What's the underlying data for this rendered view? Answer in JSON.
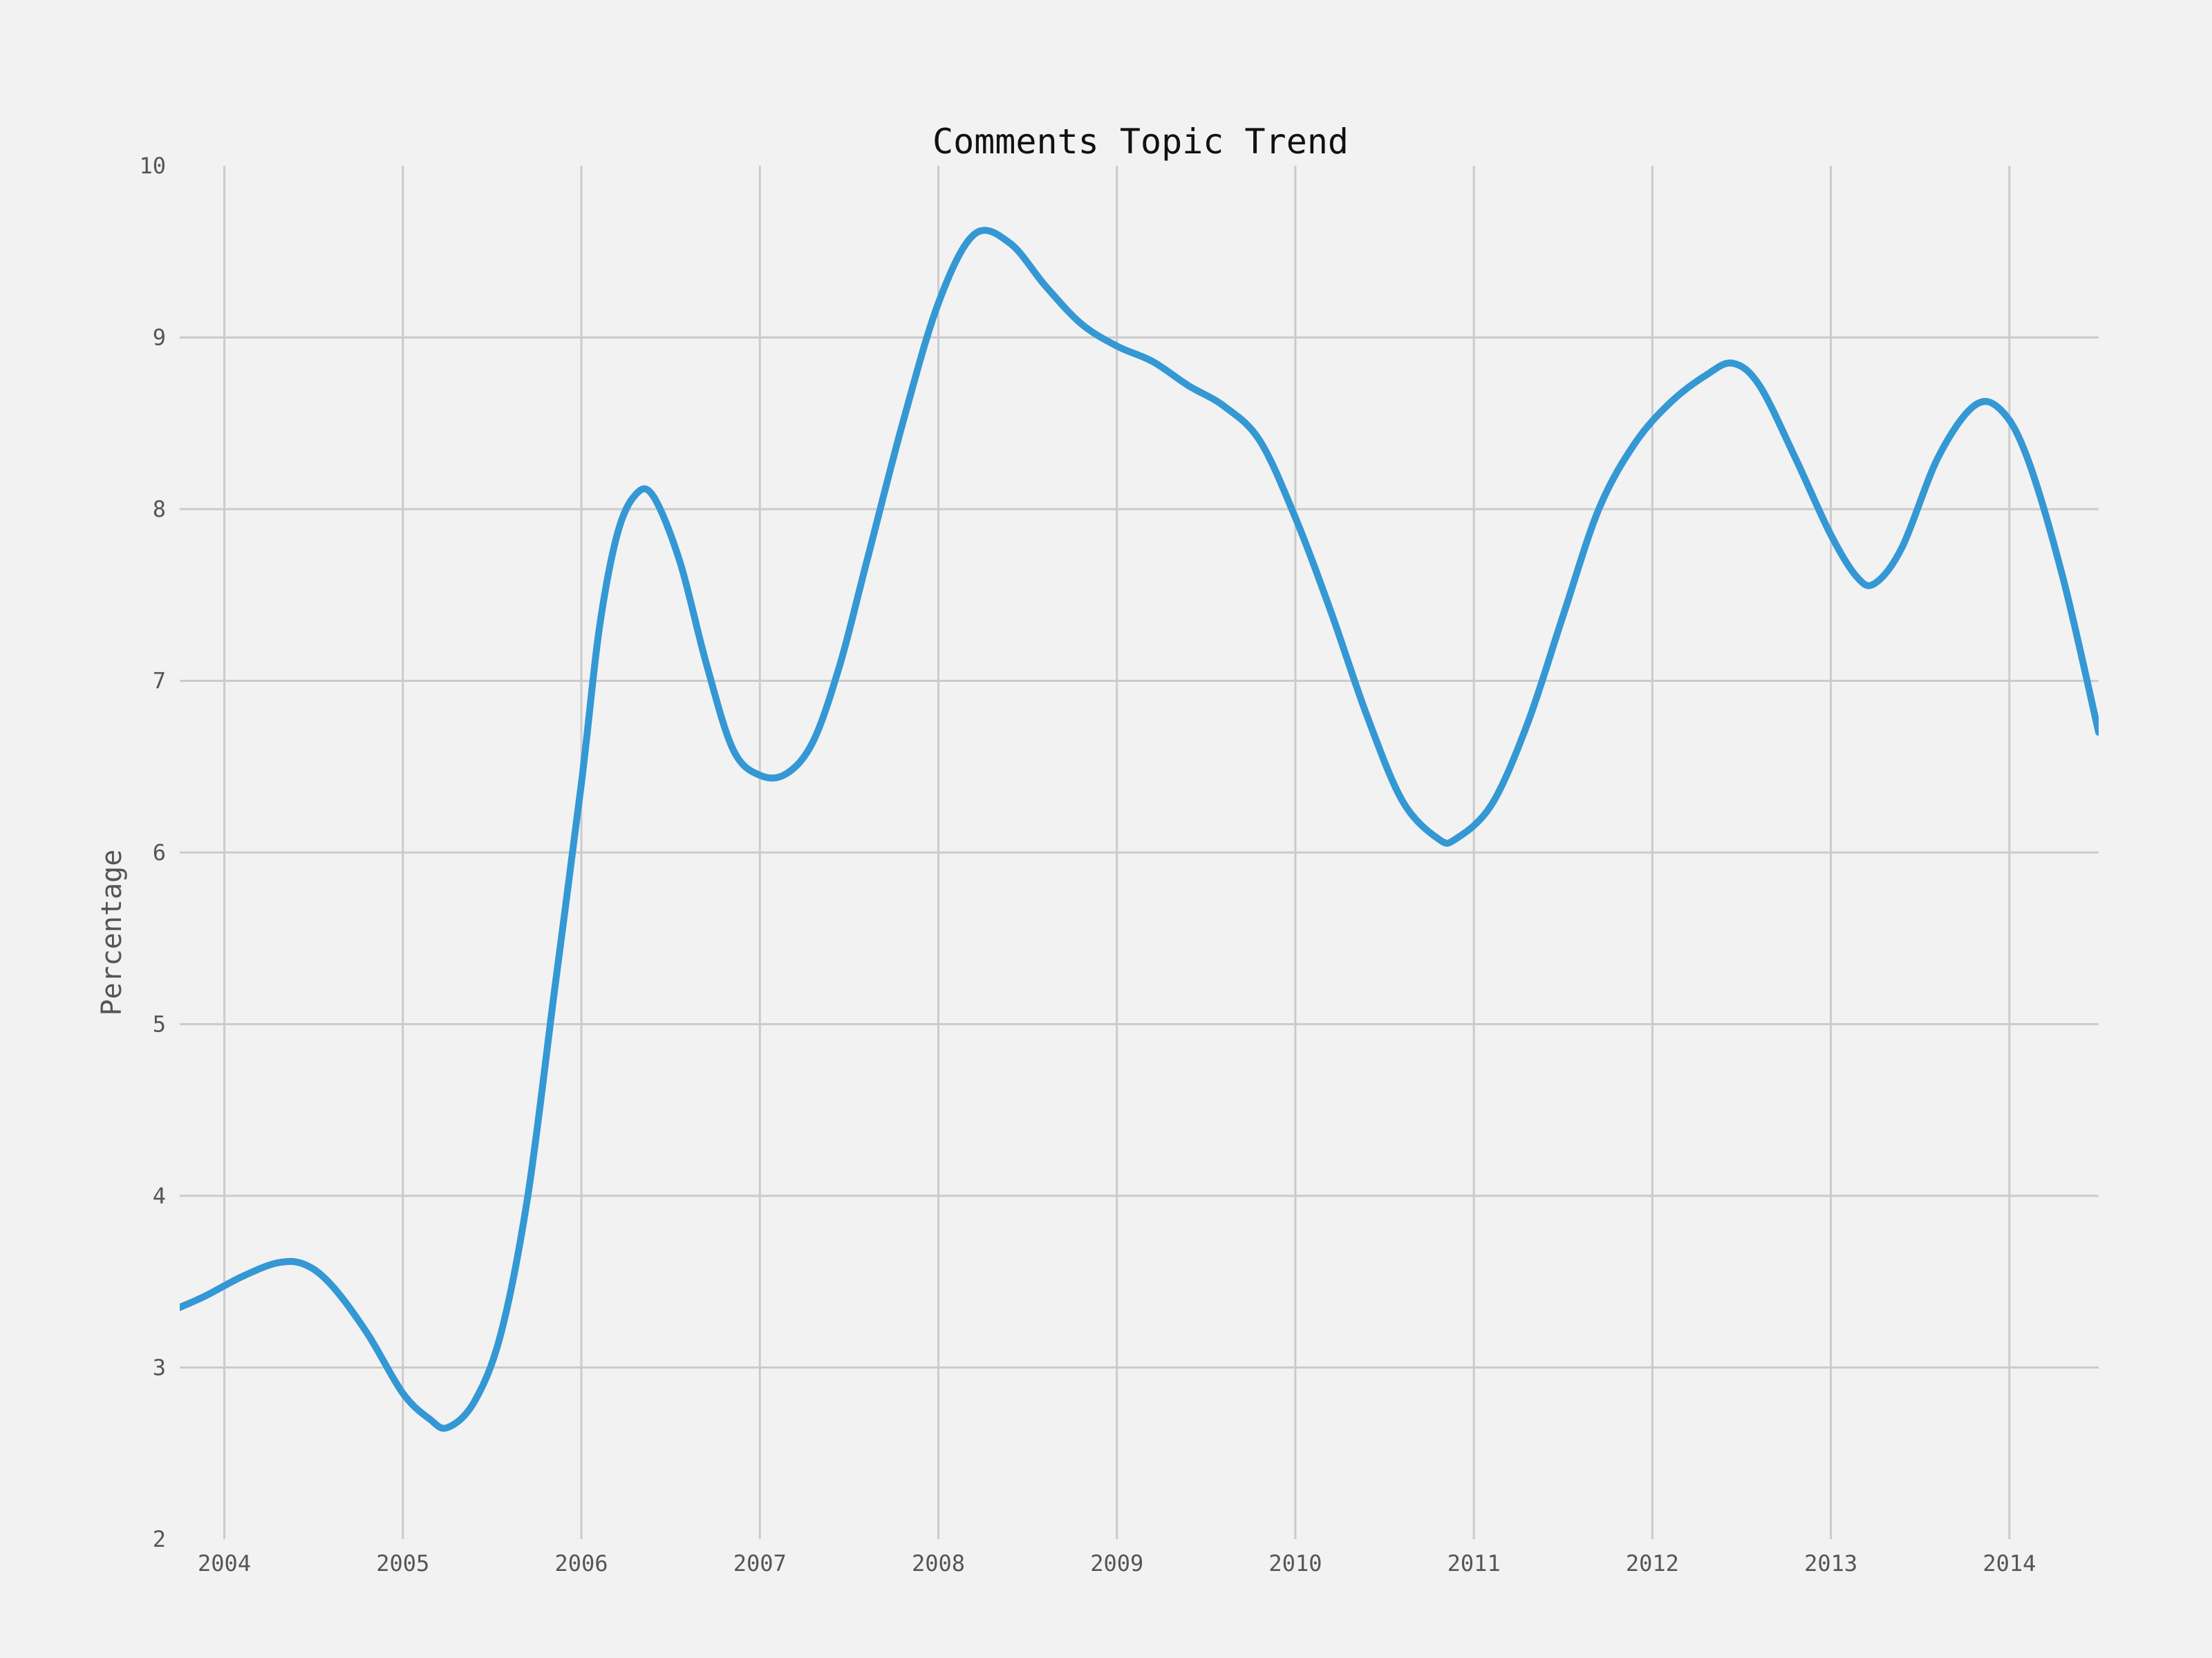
{
  "chart_data": {
    "type": "line",
    "title": "Comments Topic Trend",
    "xlabel": "",
    "ylabel": "Percentage",
    "xlim": [
      2003.75,
      2014.5
    ],
    "ylim": [
      2,
      10
    ],
    "xticks": [
      "2004",
      "2005",
      "2006",
      "2007",
      "2008",
      "2009",
      "2010",
      "2011",
      "2012",
      "2013",
      "2014"
    ],
    "yticks": [
      "2",
      "3",
      "4",
      "5",
      "6",
      "7",
      "8",
      "9",
      "10"
    ],
    "grid": true,
    "series": [
      {
        "color": "#3498d4",
        "x": [
          2003.75,
          2003.9,
          2004.1,
          2004.3,
          2004.45,
          2004.6,
          2004.8,
          2005.0,
          2005.15,
          2005.25,
          2005.4,
          2005.55,
          2005.7,
          2005.85,
          2006.0,
          2006.1,
          2006.2,
          2006.3,
          2006.4,
          2006.55,
          2006.7,
          2006.85,
          2007.0,
          2007.15,
          2007.3,
          2007.45,
          2007.6,
          2007.8,
          2008.0,
          2008.2,
          2008.4,
          2008.6,
          2008.8,
          2009.0,
          2009.2,
          2009.4,
          2009.6,
          2009.8,
          2010.0,
          2010.2,
          2010.4,
          2010.6,
          2010.8,
          2010.9,
          2011.1,
          2011.3,
          2011.5,
          2011.7,
          2011.9,
          2012.1,
          2012.3,
          2012.45,
          2012.6,
          2012.8,
          2013.0,
          2013.15,
          2013.25,
          2013.4,
          2013.6,
          2013.8,
          2013.95,
          2014.1,
          2014.3,
          2014.5
        ],
        "y": [
          3.35,
          3.42,
          3.53,
          3.61,
          3.6,
          3.48,
          3.2,
          2.85,
          2.7,
          2.65,
          2.8,
          3.2,
          4.0,
          5.2,
          6.4,
          7.3,
          7.85,
          8.08,
          8.08,
          7.7,
          7.1,
          6.6,
          6.45,
          6.46,
          6.65,
          7.1,
          7.7,
          8.5,
          9.2,
          9.6,
          9.55,
          9.3,
          9.08,
          8.95,
          8.86,
          8.72,
          8.6,
          8.4,
          7.95,
          7.4,
          6.8,
          6.3,
          6.08,
          6.08,
          6.28,
          6.75,
          7.38,
          8.0,
          8.38,
          8.62,
          8.78,
          8.85,
          8.72,
          8.3,
          7.85,
          7.6,
          7.57,
          7.78,
          8.3,
          8.6,
          8.58,
          8.3,
          7.6,
          6.7
        ]
      }
    ]
  }
}
